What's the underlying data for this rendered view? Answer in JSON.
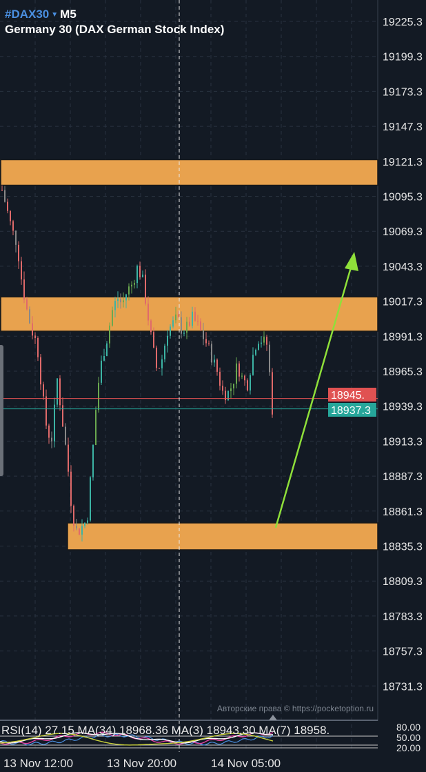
{
  "header": {
    "symbol": "#DAX30",
    "timeframe": "M5",
    "instrument_name": "Germany 30 (DAX German Stock Index)",
    "caret_icon": "triangle-down"
  },
  "colors": {
    "background": "#131a24",
    "zone": "#e8a24e",
    "bull": "#3cb4a4",
    "bear": "#e06a6a",
    "arrow": "#8fe03a",
    "current_price": "#26a69a",
    "ask_price": "#e05252"
  },
  "price_axis": {
    "labels": [
      "19225.3",
      "19199.3",
      "19173.3",
      "19147.3",
      "19121.3",
      "19095.3",
      "19069.3",
      "19043.3",
      "19017.3",
      "18991.3",
      "18965.3",
      "18939.3",
      "18913.3",
      "18887.3",
      "18861.3",
      "18835.3",
      "18809.3",
      "18783.3",
      "18757.3",
      "18731.3"
    ]
  },
  "price_tags": {
    "red": "18945.",
    "teal": "18937.3"
  },
  "time_axis": {
    "labels": [
      "13 Nov 12:00",
      "13 Nov 20:00",
      "14 Nov 05:00"
    ]
  },
  "rsi_panel": {
    "legend": "RSI(14) 27.15 MA(34) 18968.36 MA(3) 18943.30 MA(7) 18958.",
    "levels": [
      "80.00",
      "50.00",
      "20.00"
    ]
  },
  "watermark": "Авторские права © https://pocketoption.ru",
  "chart_data": {
    "type": "candlestick",
    "price_range": [
      18705.3,
      19237
    ],
    "path_closes": [
      19100,
      19085,
      19070,
      19060,
      19030,
      19010,
      18995,
      18985,
      18950,
      18920,
      18915,
      18960,
      18930,
      18900,
      18860,
      18845,
      18850,
      18855,
      18900,
      18950,
      18975,
      18990,
      19010,
      19020,
      19015,
      19025,
      19030,
      19042,
      19035,
      19010,
      18985,
      18965,
      18975,
      18995,
      19000,
      19005,
      18995,
      18998,
      19005,
      19000,
      18992,
      18985,
      18975,
      18965,
      18950,
      18948,
      18955,
      18970,
      18960,
      18955,
      18975,
      18990,
      18988,
      18985,
      18937
    ],
    "zones": [
      {
        "top": 19122.5,
        "bottom": 19103.5
      },
      {
        "top": 19020.5,
        "bottom": 18995.0
      },
      {
        "top": 18852.5,
        "bottom": 18832.5
      }
    ],
    "horizontal_lines": [
      {
        "price": 18945,
        "color": "red"
      },
      {
        "price": 18937.3,
        "color": "teal"
      }
    ],
    "arrow": {
      "from_price": 18849,
      "to_price": 19053,
      "direction": "up"
    }
  }
}
